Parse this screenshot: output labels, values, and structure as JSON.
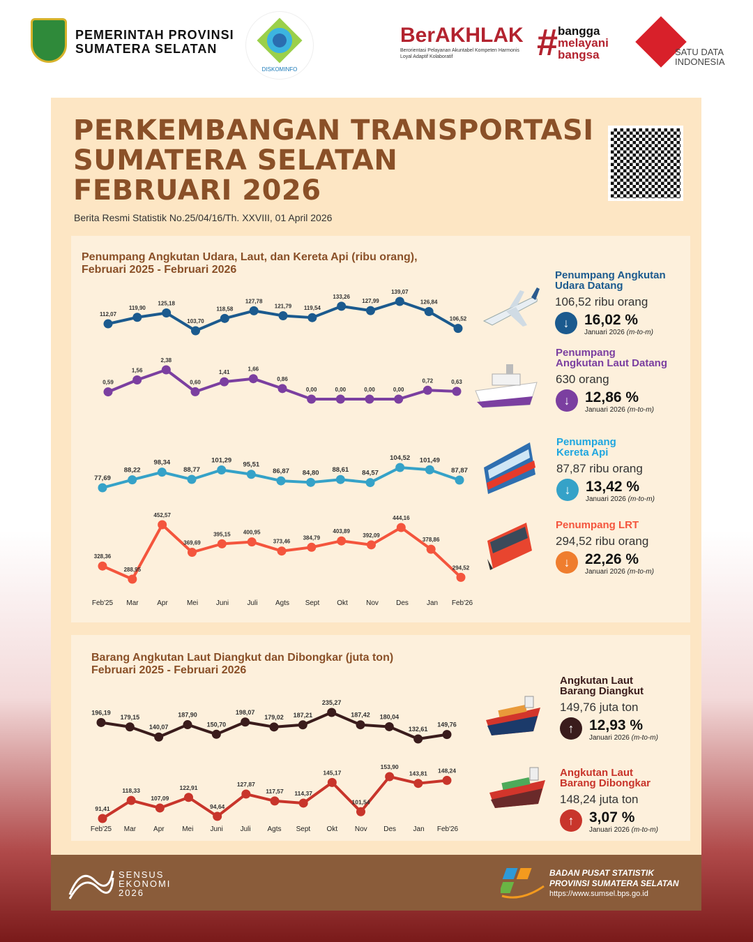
{
  "header": {
    "province_line1": "PEMERINTAH PROVINSI",
    "province_line2": "SUMATERA SELATAN",
    "diskominfo_logo": "DISKOMINFO",
    "berakhlak_logo": "BerAKHLAK",
    "berakhlak_tagline": "Berorientasi Pelayanan Akuntabel Kompeten Harmonis Loyal Adaptif Kolaboratif",
    "bangga_logo": [
      "bangga",
      "melayani",
      "bangsa"
    ],
    "satu_data_logo": [
      "SATU DATA",
      "INDONESIA"
    ]
  },
  "title": {
    "line1": "PERKEMBANGAN TRANSPORTASI",
    "line2": "SUMATERA SELATAN",
    "line3": "FEBRUARI 2026",
    "subtitle": "Berita Resmi Statistik No.25/04/16/Th. XXVIII, 01 April 2026"
  },
  "colors": {
    "air": "#1b5a8e",
    "sea": "#7b3fa0",
    "rail": "#35a2c8",
    "lrt": "#f4553d",
    "loaded": "#3a1c1c",
    "unloaded": "#c8352b",
    "title": "#8a5028"
  },
  "passengers_panel": {
    "title_line1": "Penumpang Angkutan Udara, Laut, dan Kereta Api (ribu orang),",
    "title_line2": "Februari 2025 - Februari 2026",
    "stats": [
      {
        "title_line1": "Penumpang Angkutan",
        "title_line2": "Udara Datang",
        "value": "106,52 ribu orang",
        "change": "16,02 %",
        "direction": "down",
        "period": "Januari 2026",
        "basis": "(m-to-m)",
        "icon": "airplane-icon"
      },
      {
        "title_line1": "Penumpang",
        "title_line2": "Angkutan Laut Datang",
        "value": "630  orang",
        "change": "12,86 %",
        "direction": "down",
        "period": "Januari 2026",
        "basis": "(m-to-m)",
        "icon": "ship-icon"
      },
      {
        "title_line1": "Penumpang",
        "title_line2": "Kereta Api",
        "value": "87,87 ribu orang",
        "change": "13,42 %",
        "direction": "down",
        "period": "Januari 2026",
        "basis": "(m-to-m)",
        "icon": "train-icon"
      },
      {
        "title_line1": "Penumpang LRT",
        "title_line2": "",
        "value": "294,52 ribu orang",
        "change": "22,26 %",
        "direction": "down",
        "period": "Januari 2026",
        "basis": "(m-to-m)",
        "icon": "lrt-icon"
      }
    ]
  },
  "goods_panel": {
    "title_line1": "Barang Angkutan Laut Diangkut dan Dibongkar (juta ton)",
    "title_line2": "Februari 2025 - Februari 2026",
    "stats": [
      {
        "title_line1": "Angkutan Laut",
        "title_line2": "Barang Diangkut",
        "value": "149,76 juta ton",
        "change": "12,93 %",
        "direction": "up",
        "period": "Januari 2026",
        "basis": "(m-to-m)",
        "icon": "cargo-ship-icon"
      },
      {
        "title_line1": "Angkutan Laut",
        "title_line2": "Barang Dibongkar",
        "value": "148,24 juta ton",
        "change": "3,07 %",
        "direction": "up",
        "period": "Januari 2026",
        "basis": "(m-to-m)",
        "icon": "cargo-ship-icon"
      }
    ]
  },
  "chart_data": [
    {
      "type": "line",
      "title": "Penumpang Angkutan Udara, Laut, dan Kereta Api (ribu orang), Februari 2025 - Februari 2026",
      "categories": [
        "Feb'25",
        "Mar",
        "Apr",
        "Mei",
        "Juni",
        "Juli",
        "Agts",
        "Sept",
        "Okt",
        "Nov",
        "Des",
        "Jan",
        "Feb'26"
      ],
      "grid": false,
      "series": [
        {
          "key": "air",
          "labels": [
            "112,07",
            "119,90",
            "125,18",
            "103,70",
            "118,58",
            "127,78",
            "121,79",
            "119,54",
            "133,26",
            "127,99",
            "139,07",
            "126,84",
            "106,52"
          ],
          "values": [
            112.07,
            119.9,
            125.18,
            103.7,
            118.58,
            127.78,
            121.79,
            119.54,
            133.26,
            127.99,
            139.07,
            126.84,
            106.52
          ]
        },
        {
          "key": "sea",
          "labels": [
            "0,59",
            "1,56",
            "2,38",
            "0,60",
            "1,41",
            "1,66",
            "0,86",
            "0,00",
            "0,00",
            "0,00",
            "0,00",
            "0,72",
            "0,63"
          ],
          "values": [
            0.59,
            1.56,
            2.38,
            0.6,
            1.41,
            1.66,
            0.86,
            0,
            0,
            0,
            0,
            0.72,
            0.63
          ]
        },
        {
          "key": "rail",
          "labels": [
            "77,69",
            "88,22",
            "98,34",
            "88,77",
            "101,29",
            "95,51",
            "86,87",
            "84,80",
            "88,61",
            "84,57",
            "104,52",
            "101,49",
            "87,87"
          ],
          "values": [
            77.69,
            88.22,
            98.34,
            88.77,
            101.29,
            95.51,
            86.87,
            84.8,
            88.61,
            84.57,
            104.52,
            101.49,
            87.87
          ]
        },
        {
          "key": "lrt",
          "labels": [
            "328,36",
            "288,95",
            "452,57",
            "369,69",
            "395,15",
            "400,95",
            "373,46",
            "384,79",
            "403,89",
            "392,09",
            "444,16",
            "378,86",
            "294,52"
          ],
          "values": [
            328.36,
            288.95,
            452.57,
            369.69,
            395.15,
            400.95,
            373.46,
            384.79,
            403.89,
            392.09,
            444.16,
            378.86,
            294.52
          ]
        }
      ]
    },
    {
      "type": "line",
      "title": "Barang Angkutan Laut Diangkut dan Dibongkar (juta ton) Februari 2025 - Februari 2026",
      "categories": [
        "Feb'25",
        "Mar",
        "Apr",
        "Mei",
        "Juni",
        "Juli",
        "Agts",
        "Sept",
        "Okt",
        "Nov",
        "Des",
        "Jan",
        "Feb'26"
      ],
      "grid": false,
      "series": [
        {
          "key": "loaded",
          "labels": [
            "196,19",
            "179,15",
            "140,07",
            "187,90",
            "150,70",
            "198,07",
            "179,02",
            "187,21",
            "235,27",
            "187,42",
            "180,04",
            "132,61",
            "149,76"
          ],
          "values": [
            196.19,
            179.15,
            140.07,
            187.9,
            150.7,
            198.07,
            179.02,
            187.21,
            235.27,
            187.42,
            180.04,
            132.61,
            149.76
          ]
        },
        {
          "key": "unloaded",
          "labels": [
            "91,41",
            "118,33",
            "107,09",
            "122,91",
            "94,64",
            "127,87",
            "117,57",
            "114,37",
            "145,17",
            "101,54",
            "153,90",
            "143,81",
            "148,24"
          ],
          "values": [
            91.41,
            118.33,
            107.09,
            122.91,
            94.64,
            127.87,
            117.57,
            114.37,
            145.17,
            101.54,
            153.9,
            143.81,
            148.24
          ]
        }
      ]
    }
  ],
  "footer": {
    "sensus_logo": [
      "SENSUS",
      "EKONOMI",
      "2026"
    ],
    "bps_line1": "BADAN PUSAT STATISTIK",
    "bps_line2": "PROVINSI SUMATERA SELATAN",
    "bps_url": "https://www.sumsel.bps.go.id"
  }
}
